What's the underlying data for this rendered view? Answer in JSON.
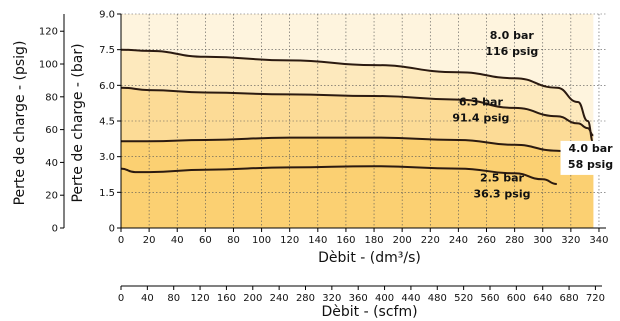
{
  "chart_data": {
    "type": "line",
    "y_left_outer": {
      "label": "Perte de charge - (psig)",
      "ticks": [
        0,
        20,
        40,
        60,
        80,
        100,
        120
      ],
      "range": [
        0,
        130.5
      ]
    },
    "y_left_inner": {
      "label": "Perte de charge - (bar)",
      "ticks": [
        "0",
        "1.5",
        "3.0",
        "4.5",
        "6.0",
        "7.5",
        "9.0"
      ],
      "range": [
        0,
        9
      ]
    },
    "x_primary": {
      "label": "Dèbit - (dm³/s)",
      "ticks": [
        0,
        20,
        40,
        60,
        80,
        100,
        120,
        140,
        160,
        180,
        200,
        220,
        240,
        260,
        280,
        300,
        320,
        340
      ],
      "range": [
        0,
        345
      ]
    },
    "x_secondary": {
      "label": "Dèbit - (scfm)",
      "ticks": [
        0,
        40,
        80,
        120,
        160,
        200,
        240,
        280,
        320,
        360,
        400,
        440,
        480,
        520,
        560,
        600,
        640,
        680,
        720
      ],
      "range": [
        0,
        730
      ]
    },
    "grid": true,
    "colors": {
      "band_top": "#fef4de",
      "band_2": "#fde9bd",
      "band_3": "#fcdb96",
      "band_bottom": "#fbd072",
      "curve": "#2b1a10",
      "grid": "#555555"
    },
    "series": [
      {
        "label_bar": "8.0 bar",
        "label_psig": "116 psig",
        "x": [
          0,
          20,
          60,
          120,
          180,
          240,
          280,
          310,
          325,
          332,
          336
        ],
        "y": [
          7.5,
          7.45,
          7.2,
          7.05,
          6.85,
          6.55,
          6.3,
          5.9,
          5.3,
          4.5,
          3.6
        ]
      },
      {
        "label_bar": "6.3 bar",
        "label_psig": "91.4 psig",
        "x": [
          0,
          20,
          60,
          120,
          180,
          240,
          280,
          310,
          325,
          332,
          336
        ],
        "y": [
          5.9,
          5.8,
          5.7,
          5.62,
          5.55,
          5.4,
          5.05,
          4.7,
          4.4,
          4.2,
          3.9
        ]
      },
      {
        "label_bar": "4.0 bar",
        "label_psig": "58 psig",
        "x": [
          0,
          20,
          60,
          120,
          180,
          240,
          280,
          310,
          330,
          340
        ],
        "y": [
          3.65,
          3.65,
          3.7,
          3.8,
          3.8,
          3.7,
          3.5,
          3.25,
          3.0,
          2.8
        ]
      },
      {
        "label_bar": "2.5 bar",
        "label_psig": "36.3 psig",
        "x": [
          0,
          10,
          20,
          60,
          120,
          180,
          240,
          280,
          300,
          310
        ],
        "y": [
          2.5,
          2.35,
          2.35,
          2.45,
          2.55,
          2.6,
          2.5,
          2.3,
          2.05,
          1.85
        ]
      }
    ]
  }
}
